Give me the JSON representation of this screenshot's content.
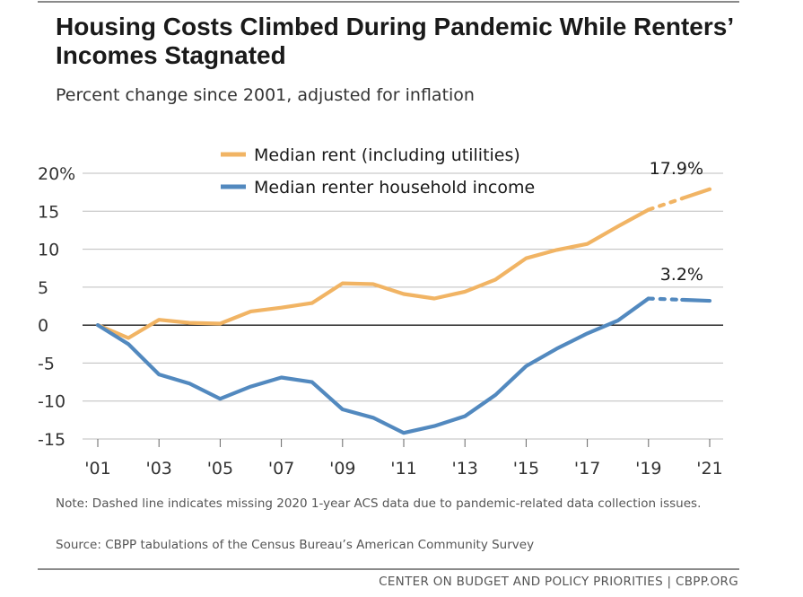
{
  "header": {
    "title": "Housing Costs Climbed During Pandemic While Renters’ Incomes Stagnated",
    "subtitle": "Percent change since 2001, adjusted for inflation"
  },
  "footnotes": {
    "note": "Note: Dashed line indicates missing 2020 1-year ACS data due to pandemic-related data collection issues.",
    "source": "Source: CBPP tabulations of the Census Bureau’s American Community Survey",
    "footer": "CENTER ON BUDGET AND POLICY PRIORITIES | CBPP.ORG"
  },
  "chart_data": {
    "type": "line",
    "title": "Housing Costs Climbed During Pandemic While Renters’ Incomes Stagnated",
    "subtitle": "Percent change since 2001, adjusted for inflation",
    "xlabel": "",
    "ylabel": "",
    "x": [
      2001,
      2002,
      2003,
      2004,
      2005,
      2006,
      2007,
      2008,
      2009,
      2010,
      2011,
      2012,
      2013,
      2014,
      2015,
      2016,
      2017,
      2018,
      2019,
      2020,
      2021
    ],
    "x_tick_labels": [
      "'01",
      "'03",
      "'05",
      "'07",
      "'09",
      "'11",
      "'13",
      "'15",
      "'17",
      "'19",
      "'21"
    ],
    "x_tick_values": [
      2001,
      2003,
      2005,
      2007,
      2009,
      2011,
      2013,
      2015,
      2017,
      2019,
      2021
    ],
    "y_tick_labels": [
      "20%",
      "15",
      "10",
      "5",
      "0",
      "-5",
      "-10",
      "-15"
    ],
    "y_tick_values": [
      20,
      15,
      10,
      5,
      0,
      -5,
      -10,
      -15
    ],
    "xlim": [
      2001,
      2021
    ],
    "ylim": [
      -15,
      20
    ],
    "grid": true,
    "legend_position": "top-center",
    "missing_x": [
      2020
    ],
    "series": [
      {
        "name": "Median rent (including utilities)",
        "color": "#f1b464",
        "values": [
          0,
          -1.7,
          0.7,
          0.3,
          0.2,
          1.8,
          2.3,
          2.9,
          5.5,
          5.4,
          4.1,
          3.5,
          4.4,
          6.0,
          8.8,
          9.9,
          10.7,
          13.0,
          15.2,
          null,
          17.9
        ],
        "end_label": "17.9%"
      },
      {
        "name": "Median renter household income",
        "color": "#5289bf",
        "values": [
          0,
          -2.5,
          -6.5,
          -7.7,
          -9.7,
          -8.1,
          -6.9,
          -7.5,
          -11.1,
          -12.2,
          -14.2,
          -13.3,
          -12.0,
          -9.2,
          -5.4,
          -3.1,
          -1.1,
          0.6,
          3.5,
          null,
          3.2
        ],
        "end_label": "3.2%"
      }
    ]
  }
}
